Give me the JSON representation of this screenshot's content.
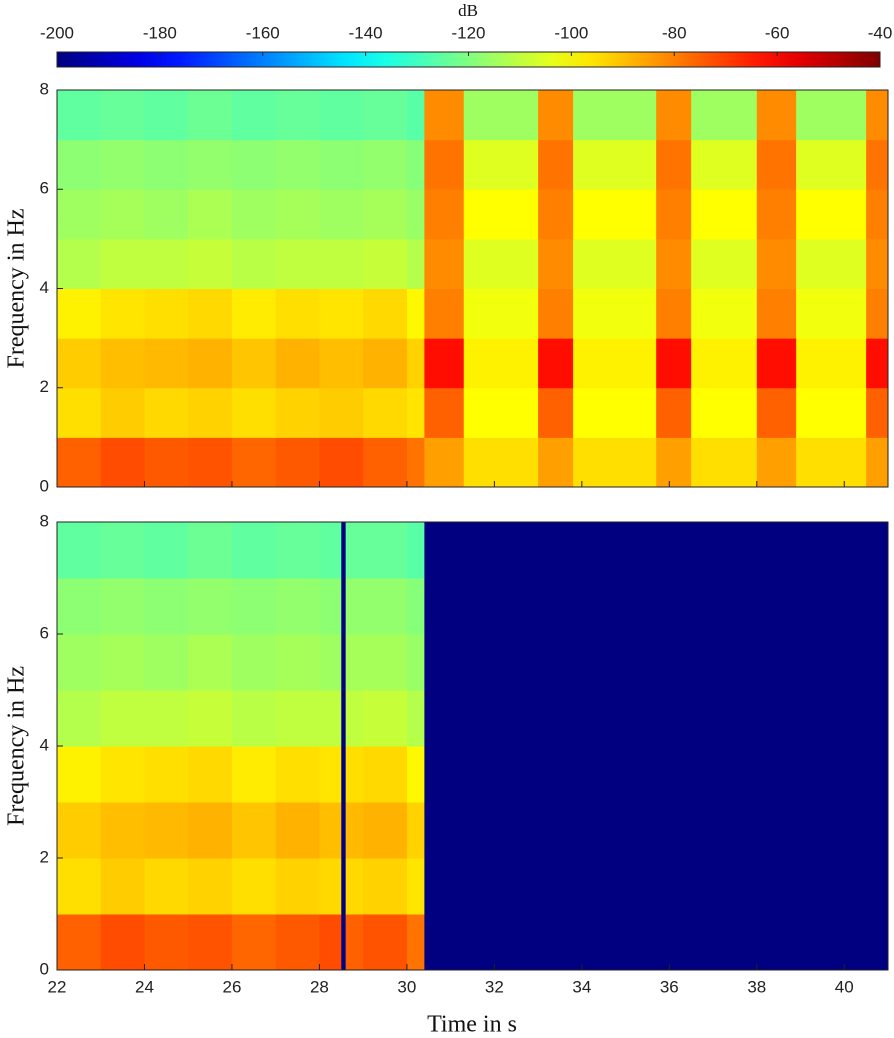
{
  "chart_data": {
    "type": "heatmap",
    "colormap": "jet",
    "colorbar": {
      "label": "dB",
      "lim": [
        -200,
        -40
      ],
      "ticks": [
        -200,
        -180,
        -160,
        -140,
        -120,
        -100,
        -80,
        -60,
        -40
      ]
    },
    "xlim": [
      22,
      41
    ],
    "xticks": [
      22,
      24,
      26,
      28,
      30,
      32,
      34,
      36,
      38,
      40
    ],
    "xlabel": "Time in s",
    "panels": [
      {
        "ylabel": "Frequency in Hz",
        "ylim": [
          0,
          8
        ],
        "yticks": [
          0,
          2,
          4,
          6,
          8
        ],
        "x_edges": [
          22,
          23,
          24,
          25,
          26,
          27,
          28,
          29,
          30,
          30.4,
          31.3,
          33,
          33.8,
          35.7,
          36.5,
          38,
          38.9,
          40.5,
          41
        ],
        "y_edges": [
          0,
          1,
          2,
          3,
          4,
          5,
          6,
          7,
          8
        ],
        "values": [
          [
            -75,
            -72,
            -74,
            -73,
            -76,
            -74,
            -72,
            -75,
            -78,
            -85,
            -95,
            -85,
            -95,
            -85,
            -95,
            -85,
            -95,
            -85
          ],
          [
            -95,
            -92,
            -94,
            -93,
            -95,
            -93,
            -92,
            -94,
            -96,
            -75,
            -100,
            -75,
            -100,
            -75,
            -100,
            -75,
            -100,
            -75
          ],
          [
            -92,
            -90,
            -89,
            -88,
            -91,
            -88,
            -90,
            -88,
            -93,
            -62,
            -98,
            -62,
            -98,
            -62,
            -98,
            -62,
            -98,
            -62
          ],
          [
            -98,
            -96,
            -95,
            -94,
            -97,
            -95,
            -96,
            -94,
            -99,
            -80,
            -102,
            -80,
            -102,
            -80,
            -102,
            -80,
            -102,
            -80
          ],
          [
            -112,
            -110,
            -110,
            -109,
            -111,
            -110,
            -110,
            -109,
            -112,
            -82,
            -105,
            -82,
            -105,
            -82,
            -105,
            -82,
            -105,
            -82
          ],
          [
            -115,
            -114,
            -115,
            -113,
            -115,
            -114,
            -115,
            -114,
            -116,
            -80,
            -100,
            -80,
            -100,
            -80,
            -100,
            -80,
            -100,
            -80
          ],
          [
            -118,
            -117,
            -118,
            -117,
            -118,
            -117,
            -118,
            -117,
            -119,
            -78,
            -105,
            -78,
            -105,
            -78,
            -105,
            -78,
            -105,
            -78
          ],
          [
            -125,
            -124,
            -125,
            -123,
            -125,
            -124,
            -125,
            -124,
            -126,
            -82,
            -115,
            -82,
            -115,
            -82,
            -115,
            -82,
            -115,
            -82
          ]
        ]
      },
      {
        "ylabel": "Frequency in Hz",
        "ylim": [
          0,
          8
        ],
        "yticks": [
          0,
          2,
          4,
          6,
          8
        ],
        "x_edges": [
          22,
          23,
          24,
          25,
          26,
          27,
          28,
          28.5,
          28.6,
          29,
          30,
          30.4,
          41
        ],
        "y_edges": [
          0,
          1,
          2,
          3,
          4,
          5,
          6,
          7,
          8
        ],
        "values": [
          [
            -75,
            -72,
            -74,
            -73,
            -76,
            -74,
            -72,
            -200,
            -75,
            -73,
            -78,
            -200
          ],
          [
            -95,
            -92,
            -94,
            -93,
            -95,
            -93,
            -94,
            -200,
            -94,
            -93,
            -96,
            -200
          ],
          [
            -92,
            -90,
            -89,
            -88,
            -91,
            -88,
            -90,
            -200,
            -89,
            -88,
            -93,
            -200
          ],
          [
            -98,
            -96,
            -95,
            -94,
            -97,
            -95,
            -96,
            -200,
            -95,
            -94,
            -99,
            -200
          ],
          [
            -112,
            -110,
            -110,
            -109,
            -111,
            -110,
            -110,
            -200,
            -110,
            -109,
            -112,
            -200
          ],
          [
            -115,
            -114,
            -115,
            -113,
            -115,
            -114,
            -115,
            -200,
            -114,
            -114,
            -116,
            -200
          ],
          [
            -118,
            -117,
            -118,
            -117,
            -118,
            -117,
            -118,
            -200,
            -117,
            -117,
            -119,
            -200
          ],
          [
            -125,
            -124,
            -125,
            -123,
            -125,
            -124,
            -125,
            -200,
            -124,
            -124,
            -126,
            -200
          ]
        ]
      }
    ]
  }
}
